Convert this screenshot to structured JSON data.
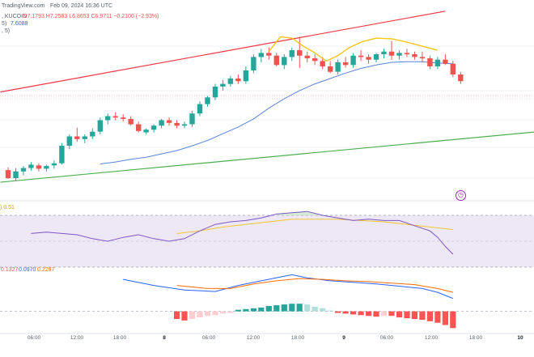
{
  "header": {
    "brand": "TradingView.com",
    "date": "Feb 09, 2024 16:36 UTC",
    "pair": ", KUCOIN",
    "ohlc": "O7.1793  H7.2583  L6.8653  C6.9711  −0.2100 (−2.93%)",
    "ma_prefix": "5)",
    "ma_value": "7.6088",
    "ma_suffix": ", 5)",
    "rsi_prefix": ") 0.51",
    "macd_hist": "0.1327",
    "macd_line": "0.0970",
    "macd_signal": "0.2297"
  },
  "alert_icon": "alert-clock-icon",
  "colors": {
    "up": "#26a69a",
    "down": "#ef5350",
    "ma": "#5b84d8",
    "resistance": "#f23645",
    "support": "#4caf50",
    "pattern": "#f5c518",
    "rsi": "#7e57c2",
    "rsi_band": "#ede7f6",
    "macd": "#2962ff",
    "signal": "#ff6d00"
  },
  "chart_data": [
    {
      "type": "candlestick",
      "title": "",
      "xlabel": "",
      "ylabel": "",
      "x_ticks": [
        "06:00",
        "12:00",
        "18:00",
        "8",
        "06:00",
        "12:00",
        "18:00",
        "9",
        "06:00",
        "12:00",
        "18:00",
        "10"
      ],
      "candles": [
        [
          6.02,
          6.06,
          5.89,
          5.9
        ],
        [
          5.9,
          6.05,
          5.86,
          6.0
        ],
        [
          6.0,
          6.08,
          5.94,
          6.05
        ],
        [
          6.05,
          6.14,
          6.01,
          6.1
        ],
        [
          6.09,
          6.12,
          6.0,
          6.04
        ],
        [
          6.04,
          6.1,
          6.0,
          6.08
        ],
        [
          6.09,
          6.16,
          6.04,
          6.12
        ],
        [
          6.12,
          6.42,
          6.1,
          6.38
        ],
        [
          6.38,
          6.55,
          6.33,
          6.52
        ],
        [
          6.52,
          6.65,
          6.44,
          6.48
        ],
        [
          6.48,
          6.55,
          6.42,
          6.52
        ],
        [
          6.52,
          6.64,
          6.48,
          6.59
        ],
        [
          6.59,
          6.8,
          6.55,
          6.76
        ],
        [
          6.76,
          6.86,
          6.7,
          6.82
        ],
        [
          6.82,
          6.88,
          6.76,
          6.8
        ],
        [
          6.8,
          6.85,
          6.74,
          6.78
        ],
        [
          6.78,
          6.82,
          6.68,
          6.7
        ],
        [
          6.7,
          6.74,
          6.58,
          6.6
        ],
        [
          6.58,
          6.64,
          6.55,
          6.62
        ],
        [
          6.62,
          6.7,
          6.58,
          6.68
        ],
        [
          6.68,
          6.78,
          6.64,
          6.76
        ],
        [
          6.76,
          6.8,
          6.68,
          6.72
        ],
        [
          6.72,
          6.76,
          6.64,
          6.68
        ],
        [
          6.68,
          6.74,
          6.64,
          6.7
        ],
        [
          6.7,
          6.9,
          6.66,
          6.86
        ],
        [
          6.86,
          7.04,
          6.82,
          7.0
        ],
        [
          7.0,
          7.12,
          6.96,
          7.1
        ],
        [
          7.1,
          7.3,
          7.06,
          7.26
        ],
        [
          7.26,
          7.36,
          7.2,
          7.3
        ],
        [
          7.3,
          7.42,
          7.26,
          7.38
        ],
        [
          7.38,
          7.44,
          7.3,
          7.34
        ],
        [
          7.34,
          7.56,
          7.3,
          7.5
        ],
        [
          7.5,
          7.74,
          7.46,
          7.7
        ],
        [
          7.7,
          7.82,
          7.62,
          7.76
        ],
        [
          7.76,
          7.84,
          7.66,
          7.72
        ],
        [
          7.72,
          7.76,
          7.56,
          7.58
        ],
        [
          7.58,
          7.74,
          7.52,
          7.7
        ],
        [
          7.7,
          7.84,
          7.64,
          7.8
        ],
        [
          7.8,
          8.0,
          7.54,
          7.72
        ],
        [
          7.72,
          7.78,
          7.62,
          7.68
        ],
        [
          7.68,
          7.74,
          7.58,
          7.64
        ],
        [
          7.64,
          7.7,
          7.52,
          7.56
        ],
        [
          7.56,
          7.64,
          7.46,
          7.48
        ],
        [
          7.48,
          7.66,
          7.44,
          7.62
        ],
        [
          7.62,
          7.7,
          7.54,
          7.58
        ],
        [
          7.58,
          7.76,
          7.54,
          7.72
        ],
        [
          7.72,
          7.8,
          7.64,
          7.7
        ],
        [
          7.7,
          7.74,
          7.6,
          7.66
        ],
        [
          7.66,
          7.76,
          7.62,
          7.74
        ],
        [
          7.74,
          7.82,
          7.68,
          7.78
        ],
        [
          7.78,
          7.94,
          7.66,
          7.72
        ],
        [
          7.72,
          7.8,
          7.66,
          7.76
        ],
        [
          7.76,
          7.82,
          7.7,
          7.74
        ],
        [
          7.74,
          7.78,
          7.66,
          7.7
        ],
        [
          7.7,
          7.78,
          7.62,
          7.68
        ],
        [
          7.68,
          7.72,
          7.52,
          7.56
        ],
        [
          7.56,
          7.7,
          7.52,
          7.66
        ],
        [
          7.66,
          7.74,
          7.58,
          7.6
        ],
        [
          7.6,
          7.64,
          7.4,
          7.44
        ],
        [
          7.44,
          7.48,
          7.3,
          7.34
        ]
      ],
      "moving_average": [
        [
          12,
          6.11
        ],
        [
          14,
          6.14
        ],
        [
          16,
          6.18
        ],
        [
          18,
          6.21
        ],
        [
          20,
          6.26
        ],
        [
          22,
          6.31
        ],
        [
          24,
          6.38
        ],
        [
          26,
          6.46
        ],
        [
          28,
          6.56
        ],
        [
          30,
          6.66
        ],
        [
          32,
          6.78
        ],
        [
          34,
          6.94
        ],
        [
          36,
          7.08
        ],
        [
          38,
          7.2
        ],
        [
          40,
          7.3
        ],
        [
          42,
          7.38
        ],
        [
          44,
          7.46
        ],
        [
          46,
          7.53
        ],
        [
          48,
          7.58
        ],
        [
          50,
          7.62
        ],
        [
          52,
          7.63
        ],
        [
          54,
          7.63
        ],
        [
          56,
          7.61
        ],
        [
          58,
          7.6
        ]
      ],
      "resistance_line": [
        [
          -1,
          7.18
        ],
        [
          57,
          8.38
        ]
      ],
      "support_line": [
        [
          -1,
          5.84
        ],
        [
          70,
          6.6
        ]
      ],
      "head_and_shoulders": [
        [
          34,
          7.78
        ],
        [
          35.5,
          8.0
        ],
        [
          37,
          7.98
        ],
        [
          38.5,
          7.86
        ],
        [
          40,
          7.76
        ],
        [
          41.5,
          7.64
        ],
        [
          43,
          7.72
        ],
        [
          44.5,
          7.84
        ],
        [
          46,
          7.92
        ],
        [
          48,
          7.98
        ],
        [
          50,
          7.97
        ],
        [
          52,
          7.92
        ],
        [
          54,
          7.86
        ],
        [
          56,
          7.8
        ]
      ],
      "ylim": [
        5.6,
        8.45
      ]
    },
    {
      "type": "line",
      "title": "",
      "series": [
        {
          "values": [
            [
              3,
              56
            ],
            [
              5,
              57
            ],
            [
              7,
              56
            ],
            [
              9,
              55
            ],
            [
              11,
              52
            ],
            [
              13,
              50
            ],
            [
              15,
              53
            ],
            [
              17,
              55
            ],
            [
              19,
              52
            ],
            [
              21,
              50
            ],
            [
              23,
              52
            ],
            [
              25,
              58
            ],
            [
              27,
              63
            ],
            [
              29,
              65
            ],
            [
              31,
              66
            ],
            [
              33,
              68
            ],
            [
              35,
              71
            ],
            [
              37,
              72
            ],
            [
              39,
              73
            ],
            [
              41,
              70
            ],
            [
              43,
              68
            ],
            [
              45,
              66
            ],
            [
              47,
              67
            ],
            [
              49,
              66
            ],
            [
              51,
              66
            ],
            [
              53,
              62
            ],
            [
              55,
              58
            ],
            [
              56,
              53
            ],
            [
              57,
              46
            ],
            [
              58,
              40
            ]
          ]
        },
        {
          "values": [
            [
              22,
              56
            ],
            [
              25,
              58
            ],
            [
              28,
              61
            ],
            [
              31,
              63
            ],
            [
              34,
              65
            ],
            [
              37,
              67
            ],
            [
              40,
              67
            ],
            [
              43,
              67
            ],
            [
              46,
              66
            ],
            [
              49,
              65
            ],
            [
              52,
              63
            ],
            [
              55,
              61
            ],
            [
              58,
              59
            ]
          ]
        }
      ],
      "ylim": [
        30,
        80
      ]
    },
    {
      "type": "bar",
      "title": "",
      "series": [
        {
          "values": [
            [
              22,
              -0.1
            ],
            [
              23,
              -0.12
            ],
            [
              24,
              -0.1
            ],
            [
              25,
              -0.08
            ],
            [
              26,
              -0.06
            ],
            [
              27,
              -0.05
            ],
            [
              28,
              -0.03
            ],
            [
              29,
              -0.02
            ],
            [
              30,
              0.02
            ],
            [
              31,
              0.03
            ],
            [
              32,
              0.04
            ],
            [
              33,
              0.05
            ],
            [
              34,
              0.07
            ],
            [
              35,
              0.08
            ],
            [
              36,
              0.09
            ],
            [
              37,
              0.1
            ],
            [
              38,
              0.1
            ],
            [
              39,
              0.09
            ],
            [
              40,
              0.06
            ],
            [
              41,
              0.04
            ],
            [
              42,
              0.01
            ],
            [
              43,
              -0.02
            ],
            [
              44,
              -0.03
            ],
            [
              45,
              -0.04
            ],
            [
              46,
              -0.05
            ],
            [
              47,
              -0.06
            ],
            [
              48,
              -0.07
            ],
            [
              49,
              -0.06
            ],
            [
              50,
              -0.06
            ],
            [
              51,
              -0.08
            ],
            [
              52,
              -0.09
            ],
            [
              53,
              -0.1
            ],
            [
              54,
              -0.11
            ],
            [
              55,
              -0.13
            ],
            [
              56,
              -0.15
            ],
            [
              57,
              -0.18
            ],
            [
              58,
              -0.22
            ]
          ]
        }
      ],
      "lines": [
        {
          "values": [
            [
              15,
              0.42
            ],
            [
              19,
              0.34
            ],
            [
              23,
              0.28
            ],
            [
              27,
              0.26
            ],
            [
              30,
              0.34
            ],
            [
              33,
              0.4
            ],
            [
              36,
              0.46
            ],
            [
              37,
              0.48
            ],
            [
              39,
              0.44
            ],
            [
              42,
              0.4
            ],
            [
              45,
              0.38
            ],
            [
              48,
              0.36
            ],
            [
              51,
              0.33
            ],
            [
              54,
              0.3
            ],
            [
              56,
              0.25
            ],
            [
              58,
              0.17
            ]
          ]
        },
        {
          "values": [
            [
              22,
              0.34
            ],
            [
              26,
              0.3
            ],
            [
              29,
              0.3
            ],
            [
              32,
              0.36
            ],
            [
              35,
              0.4
            ],
            [
              38,
              0.43
            ],
            [
              41,
              0.42
            ],
            [
              44,
              0.4
            ],
            [
              47,
              0.39
            ],
            [
              50,
              0.37
            ],
            [
              53,
              0.35
            ],
            [
              56,
              0.3
            ],
            [
              58,
              0.25
            ]
          ]
        }
      ],
      "ylim": [
        -0.27,
        0.58
      ]
    }
  ]
}
